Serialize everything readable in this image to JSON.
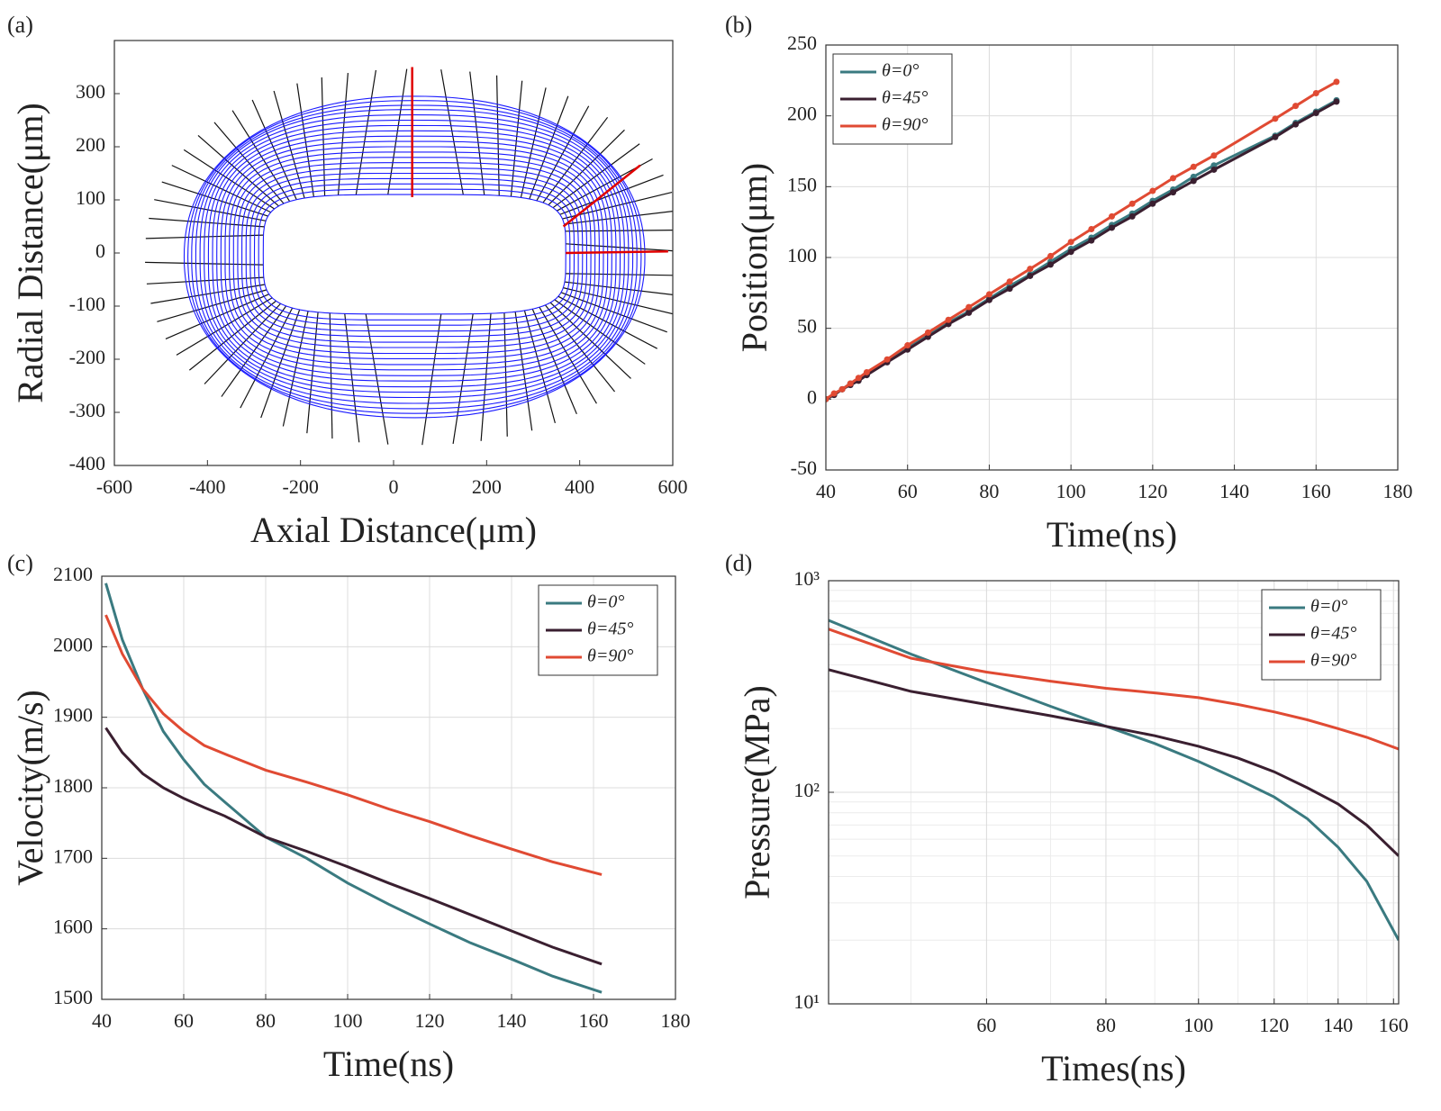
{
  "chart_data": [
    {
      "type": "contour",
      "label": "(a)",
      "xlabel": "Axial Distance(μm)",
      "ylabel": "Radial Distance(μm)",
      "xlim": [
        -600,
        600
      ],
      "ylim": [
        -400,
        400
      ],
      "xticks": [
        -600,
        -400,
        -200,
        0,
        200,
        400,
        600
      ],
      "yticks": [
        -400,
        -300,
        -200,
        -100,
        0,
        100,
        200,
        300
      ],
      "front_color": "#1a1aff",
      "ray_color": "#111111",
      "grid": false,
      "fronts": {
        "left": [
          -280,
          -290,
          -299,
          -308,
          -317,
          -326,
          -335,
          -344,
          -353,
          -362,
          -371,
          -380,
          -389,
          -398,
          -407,
          -416,
          -425,
          -434,
          -442,
          -450
        ],
        "right": [
          370,
          379,
          388,
          397,
          406,
          415,
          424,
          433,
          442,
          451,
          460,
          469,
          478,
          487,
          496,
          505,
          514,
          523,
          532,
          540
        ],
        "top": [
          110,
          120,
          130,
          140,
          150,
          160,
          170,
          180,
          190,
          200,
          210,
          220,
          230,
          240,
          250,
          260,
          270,
          278,
          287,
          295
        ],
        "bottom": [
          -115,
          -126,
          -136,
          -147,
          -157,
          -168,
          -178,
          -189,
          -199,
          -210,
          -220,
          -231,
          -241,
          -252,
          -262,
          -272,
          -283,
          -293,
          -302,
          -310
        ]
      },
      "highlights": [
        {
          "color": "#e00000",
          "x": [
            40,
            40
          ],
          "y": [
            105,
            350
          ]
        },
        {
          "color": "#e00000",
          "x": [
            365,
            530
          ],
          "y": [
            50,
            165
          ]
        },
        {
          "color": "#e00000",
          "x": [
            370,
            590
          ],
          "y": [
            0,
            3
          ]
        }
      ]
    },
    {
      "type": "line",
      "label": "(b)",
      "xlabel": "Time(ns)",
      "ylabel": "Position(μm)",
      "xlim": [
        40,
        180
      ],
      "ylim": [
        -50,
        250
      ],
      "xticks": [
        40,
        60,
        80,
        100,
        120,
        140,
        160,
        180
      ],
      "yticks": [
        -50,
        0,
        50,
        100,
        150,
        200,
        250
      ],
      "grid": true,
      "markers": true,
      "legend": "upper left",
      "x": [
        40,
        42,
        44,
        46,
        48,
        50,
        55,
        60,
        65,
        70,
        75,
        80,
        85,
        90,
        95,
        100,
        105,
        110,
        115,
        120,
        125,
        130,
        135,
        150,
        155,
        160,
        165
      ],
      "series": [
        {
          "name": "θ=0°",
          "color": "#3a7a80",
          "values": [
            0,
            3,
            7,
            11,
            14,
            17,
            27,
            36,
            45,
            54,
            62,
            71,
            80,
            88,
            97,
            106,
            114,
            123,
            131,
            140,
            148,
            157,
            165,
            186,
            195,
            203,
            211
          ]
        },
        {
          "name": "θ=45°",
          "color": "#3a1f30",
          "values": [
            0,
            3,
            7,
            10,
            13,
            17,
            26,
            35,
            44,
            53,
            61,
            70,
            78,
            87,
            95,
            104,
            112,
            121,
            129,
            138,
            146,
            154,
            162,
            185,
            194,
            202,
            210
          ]
        },
        {
          "name": "θ=90°",
          "color": "#e04a33",
          "values": [
            0,
            4,
            7,
            11,
            15,
            19,
            28,
            38,
            47,
            56,
            65,
            74,
            83,
            92,
            101,
            111,
            120,
            129,
            138,
            147,
            156,
            164,
            172,
            198,
            207,
            216,
            224
          ]
        }
      ]
    },
    {
      "type": "line",
      "label": "(c)",
      "xlabel": "Time(ns)",
      "ylabel": "Velocity(m/s)",
      "xlim": [
        40,
        180
      ],
      "ylim": [
        1500,
        2100
      ],
      "xticks": [
        40,
        60,
        80,
        100,
        120,
        140,
        160,
        180
      ],
      "yticks": [
        1500,
        1600,
        1700,
        1800,
        1900,
        2000,
        2100
      ],
      "grid": true,
      "markers": false,
      "legend": "upper right",
      "x": [
        41,
        45,
        50,
        55,
        60,
        65,
        70,
        80,
        90,
        100,
        110,
        120,
        130,
        140,
        150,
        162
      ],
      "series": [
        {
          "name": "θ=0°",
          "color": "#3a7a80",
          "values": [
            2090,
            2010,
            1940,
            1880,
            1840,
            1805,
            1780,
            1730,
            1700,
            1665,
            1635,
            1607,
            1580,
            1557,
            1533,
            1510
          ]
        },
        {
          "name": "θ=45°",
          "color": "#3a1f30",
          "values": [
            1885,
            1850,
            1820,
            1800,
            1785,
            1772,
            1760,
            1730,
            1710,
            1688,
            1665,
            1643,
            1620,
            1597,
            1574,
            1550
          ]
        },
        {
          "name": "θ=90°",
          "color": "#e04a33",
          "values": [
            2045,
            1990,
            1940,
            1905,
            1880,
            1860,
            1848,
            1825,
            1808,
            1790,
            1770,
            1752,
            1732,
            1713,
            1695,
            1677
          ]
        }
      ]
    },
    {
      "type": "line",
      "label": "(d)",
      "xlabel": "Times(ns)",
      "ylabel": "Pressure(MPa)",
      "xlim": [
        41,
        162
      ],
      "ylim": [
        10,
        1000
      ],
      "xlog": true,
      "ylog": true,
      "xticks": [
        60,
        80,
        100,
        120,
        140,
        160
      ],
      "yticks": [
        {
          "value": 10,
          "label": "10¹"
        },
        {
          "value": 100,
          "label": "10²"
        },
        {
          "value": 1000,
          "label": "10³"
        }
      ],
      "grid": true,
      "markers": false,
      "legend": "upper right",
      "x": [
        41,
        50,
        60,
        70,
        80,
        90,
        100,
        110,
        120,
        130,
        140,
        150,
        162
      ],
      "series": [
        {
          "name": "θ=0°",
          "color": "#3a7a80",
          "values": [
            650,
            450,
            330,
            255,
            205,
            170,
            140,
            115,
            95,
            75,
            55,
            38,
            20
          ]
        },
        {
          "name": "θ=45°",
          "color": "#3a1f30",
          "values": [
            380,
            300,
            260,
            230,
            205,
            185,
            165,
            145,
            125,
            105,
            88,
            70,
            50
          ]
        },
        {
          "name": "θ=90°",
          "color": "#e04a33",
          "values": [
            590,
            430,
            370,
            335,
            310,
            295,
            280,
            260,
            240,
            220,
            200,
            182,
            160
          ]
        }
      ]
    }
  ]
}
